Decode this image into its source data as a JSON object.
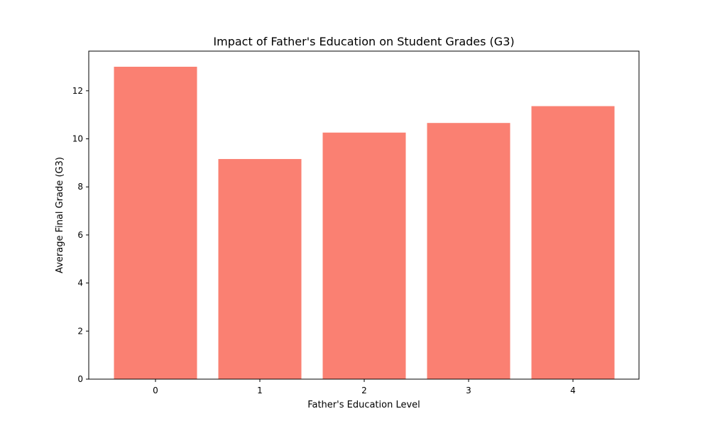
{
  "chart_data": {
    "type": "bar",
    "title": "Impact of Father's Education on Student Grades (G3)",
    "xlabel": "Father's Education Level",
    "ylabel": "Average Final Grade (G3)",
    "categories": [
      "0",
      "1",
      "2",
      "3",
      "4"
    ],
    "values": [
      13.0,
      9.16,
      10.26,
      10.66,
      11.36
    ],
    "ylim": [
      0,
      13.65
    ],
    "yticks": [
      0,
      2,
      4,
      6,
      8,
      10,
      12
    ],
    "grid": false,
    "legend": "none",
    "bar_color": "#fa8072"
  }
}
